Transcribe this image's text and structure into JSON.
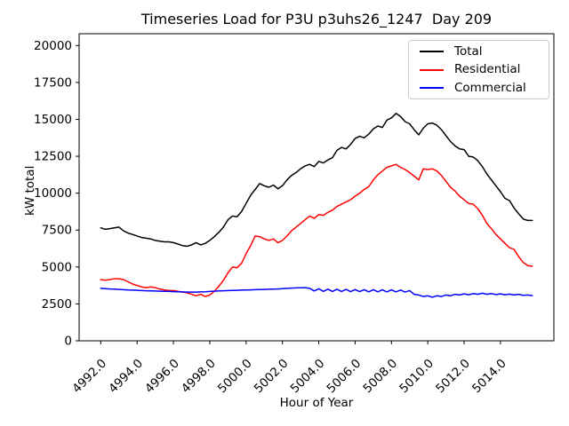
{
  "figure": {
    "background": "#ffffff"
  },
  "chart_data": {
    "type": "line",
    "title": "Timeseries Load for P3U p3uhs26_1247  Day 209",
    "xlabel": "Hour of Year",
    "ylabel": "kW total",
    "grid": false,
    "legend_position": "upper right",
    "xlim": [
      4990.81,
      5016.94
    ],
    "ylim": [
      0,
      20800
    ],
    "x_ticks": [
      4992,
      4994,
      4996,
      4998,
      5000,
      5002,
      5004,
      5006,
      5008,
      5010,
      5012,
      5014
    ],
    "x_tick_labels": [
      "4992.0",
      "4994.0",
      "4996.0",
      "4998.0",
      "5000.0",
      "5002.0",
      "5004.0",
      "5006.0",
      "5008.0",
      "5010.0",
      "5012.0",
      "5014.0"
    ],
    "y_ticks": [
      0,
      2500,
      5000,
      7500,
      10000,
      12500,
      15000,
      17500,
      20000
    ],
    "y_tick_labels": [
      "0",
      "2500",
      "5000",
      "7500",
      "10000",
      "12500",
      "15000",
      "17500",
      "20000"
    ],
    "x": [
      4992.0,
      4992.25,
      4992.5,
      4992.75,
      4993.0,
      4993.25,
      4993.5,
      4993.75,
      4994.0,
      4994.25,
      4994.5,
      4994.75,
      4995.0,
      4995.25,
      4995.5,
      4995.75,
      4996.0,
      4996.25,
      4996.5,
      4996.75,
      4997.0,
      4997.25,
      4997.5,
      4997.75,
      4998.0,
      4998.25,
      4998.5,
      4998.75,
      4999.0,
      4999.25,
      4999.5,
      4999.75,
      5000.0,
      5000.25,
      5000.5,
      5000.75,
      5001.0,
      5001.25,
      5001.5,
      5001.75,
      5002.0,
      5002.25,
      5002.5,
      5002.75,
      5003.0,
      5003.25,
      5003.5,
      5003.75,
      5004.0,
      5004.25,
      5004.5,
      5004.75,
      5005.0,
      5005.25,
      5005.5,
      5005.75,
      5006.0,
      5006.25,
      5006.5,
      5006.75,
      5007.0,
      5007.25,
      5007.5,
      5007.75,
      5008.0,
      5008.25,
      5008.5,
      5008.75,
      5009.0,
      5009.25,
      5009.5,
      5009.75,
      5010.0,
      5010.25,
      5010.5,
      5010.75,
      5011.0,
      5011.25,
      5011.5,
      5011.75,
      5012.0,
      5012.25,
      5012.5,
      5012.75,
      5013.0,
      5013.25,
      5013.5,
      5013.75,
      5014.0,
      5014.25,
      5014.5,
      5014.75,
      5015.0,
      5015.25,
      5015.5,
      5015.75
    ],
    "series": [
      {
        "name": "Total",
        "color": "#000000",
        "values": [
          7650,
          7550,
          7600,
          7650,
          7700,
          7450,
          7300,
          7200,
          7100,
          7000,
          6950,
          6900,
          6800,
          6750,
          6700,
          6700,
          6650,
          6550,
          6450,
          6400,
          6500,
          6650,
          6500,
          6600,
          6800,
          7050,
          7350,
          7700,
          8200,
          8450,
          8400,
          8750,
          9300,
          9850,
          10250,
          10650,
          10500,
          10400,
          10550,
          10300,
          10500,
          10900,
          11200,
          11400,
          11650,
          11850,
          11950,
          11800,
          12150,
          12050,
          12250,
          12400,
          12900,
          13100,
          13000,
          13300,
          13700,
          13850,
          13750,
          14000,
          14350,
          14550,
          14450,
          14950,
          15100,
          15400,
          15200,
          14850,
          14700,
          14300,
          13950,
          14400,
          14700,
          14750,
          14600,
          14300,
          13900,
          13500,
          13200,
          13000,
          12950,
          12500,
          12450,
          12200,
          11800,
          11300,
          10900,
          10500,
          10100,
          9650,
          9500,
          9000,
          8600,
          8250,
          8150,
          8150
        ]
      },
      {
        "name": "Residential",
        "color": "#ff0000",
        "values": [
          4150,
          4100,
          4150,
          4200,
          4200,
          4150,
          4000,
          3850,
          3750,
          3650,
          3600,
          3650,
          3600,
          3500,
          3450,
          3400,
          3400,
          3350,
          3300,
          3250,
          3150,
          3050,
          3150,
          3000,
          3100,
          3350,
          3700,
          4100,
          4600,
          5000,
          4950,
          5250,
          5900,
          6450,
          7100,
          7050,
          6900,
          6800,
          6900,
          6650,
          6800,
          7100,
          7450,
          7700,
          7950,
          8200,
          8450,
          8300,
          8550,
          8500,
          8700,
          8850,
          9100,
          9250,
          9400,
          9550,
          9800,
          10000,
          10250,
          10450,
          10900,
          11250,
          11500,
          11750,
          11850,
          11950,
          11750,
          11600,
          11400,
          11150,
          10900,
          11650,
          11600,
          11650,
          11500,
          11200,
          10800,
          10400,
          10150,
          9800,
          9550,
          9300,
          9250,
          8950,
          8500,
          7950,
          7600,
          7200,
          6900,
          6600,
          6300,
          6200,
          5700,
          5300,
          5100,
          5050
        ]
      },
      {
        "name": "Commercial",
        "color": "#0000ff",
        "values": [
          3550,
          3530,
          3510,
          3500,
          3480,
          3460,
          3440,
          3430,
          3420,
          3400,
          3390,
          3380,
          3370,
          3360,
          3350,
          3340,
          3330,
          3320,
          3310,
          3300,
          3300,
          3300,
          3310,
          3320,
          3340,
          3360,
          3380,
          3390,
          3400,
          3410,
          3420,
          3430,
          3440,
          3450,
          3460,
          3470,
          3480,
          3490,
          3500,
          3510,
          3530,
          3550,
          3570,
          3580,
          3590,
          3600,
          3550,
          3380,
          3520,
          3350,
          3500,
          3340,
          3490,
          3340,
          3480,
          3330,
          3470,
          3330,
          3460,
          3320,
          3460,
          3320,
          3450,
          3310,
          3450,
          3310,
          3440,
          3300,
          3400,
          3150,
          3100,
          3000,
          3050,
          2950,
          3050,
          3000,
          3100,
          3050,
          3150,
          3100,
          3180,
          3120,
          3200,
          3150,
          3220,
          3150,
          3200,
          3130,
          3180,
          3120,
          3160,
          3100,
          3150,
          3080,
          3100,
          3060
        ]
      }
    ]
  }
}
